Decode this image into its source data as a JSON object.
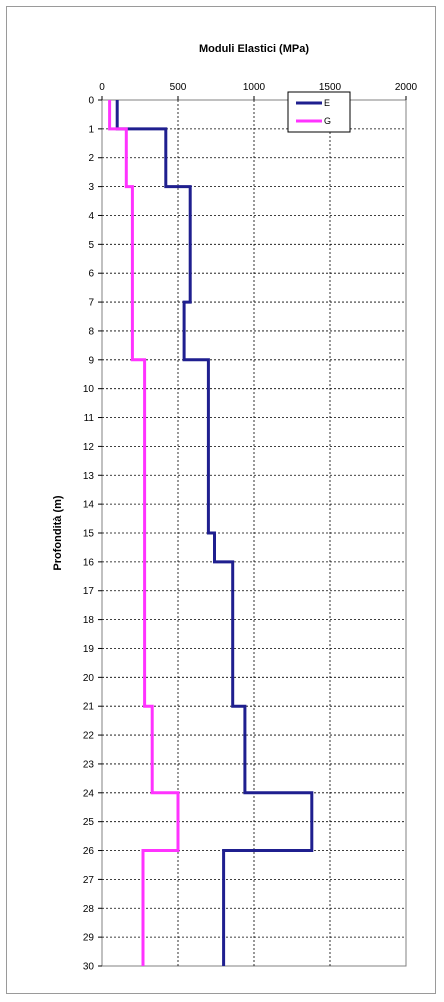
{
  "chart_data": {
    "type": "line",
    "title": "Moduli Elastici (MPa)",
    "ylabel": "Profondità (m)",
    "xlabel": "",
    "xlim": [
      0,
      2000
    ],
    "ylim": [
      0,
      30
    ],
    "x_ticks": [
      "0",
      "500",
      "1000",
      "1500",
      "2000"
    ],
    "y_ticks": [
      "0",
      "1",
      "2",
      "3",
      "4",
      "5",
      "6",
      "7",
      "8",
      "9",
      "10",
      "11",
      "12",
      "13",
      "14",
      "15",
      "16",
      "17",
      "18",
      "19",
      "20",
      "21",
      "22",
      "23",
      "24",
      "25",
      "26",
      "27",
      "28",
      "29",
      "30"
    ],
    "grid": true,
    "legend_position": "top-right",
    "series": [
      {
        "name": "E",
        "color": "#1f1f8f",
        "depth": [
          0,
          1,
          1,
          3,
          3,
          7,
          7,
          9,
          9,
          15,
          15,
          16,
          16,
          21,
          21,
          24,
          24,
          26,
          26,
          30
        ],
        "values": [
          100,
          100,
          420,
          420,
          580,
          580,
          540,
          540,
          700,
          700,
          740,
          740,
          860,
          860,
          940,
          940,
          1380,
          1380,
          800,
          800
        ]
      },
      {
        "name": "G",
        "color": "#ff33ff",
        "depth": [
          0,
          1,
          1,
          3,
          3,
          9,
          9,
          21,
          21,
          24,
          24,
          26,
          26,
          30
        ],
        "values": [
          50,
          50,
          160,
          160,
          200,
          200,
          280,
          280,
          330,
          330,
          500,
          500,
          270,
          270
        ]
      }
    ]
  }
}
